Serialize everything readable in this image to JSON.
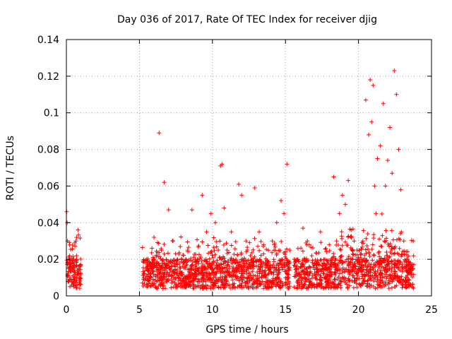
{
  "chart_data": {
    "type": "scatter",
    "title": "Day 036 of 2017, Rate Of TEC Index for receiver djig",
    "xlabel": "GPS time / hours",
    "ylabel": "ROTI / TECUs",
    "xlim": [
      0,
      25
    ],
    "ylim": [
      0,
      0.14
    ],
    "x_ticks": [
      0,
      5,
      10,
      15,
      20,
      25
    ],
    "x_tick_labels": [
      "0",
      "5",
      "10",
      "15",
      "20",
      "25"
    ],
    "y_ticks": [
      0,
      0.02,
      0.04,
      0.06,
      0.08,
      0.1,
      0.12,
      0.14
    ],
    "y_tick_labels": [
      "0",
      "0.02",
      "0.04",
      "0.06",
      "0.08",
      "0.1",
      "0.12",
      "0.14"
    ],
    "grid": true,
    "marker": "+",
    "marker_color": "#ff0000",
    "series": [
      {
        "name": "ROTI",
        "x": [
          0.02,
          0.05,
          0.08,
          0.1,
          0.14,
          0.18,
          0.2,
          0.25,
          0.3,
          0.35,
          0.4,
          0.45,
          0.5,
          0.55,
          0.6,
          0.65,
          0.7,
          0.75,
          0.8,
          0.85,
          5.3,
          5.5,
          5.8,
          6.0,
          6.2,
          6.35,
          6.5,
          6.7,
          7.0,
          7.3,
          7.6,
          8.0,
          8.3,
          8.6,
          9.0,
          9.3,
          9.6,
          9.9,
          10.2,
          10.4,
          10.55,
          10.65,
          10.8,
          11.0,
          11.3,
          11.6,
          11.8,
          12.0,
          12.3,
          12.6,
          12.9,
          13.2,
          13.5,
          13.8,
          14.1,
          14.4,
          14.7,
          14.9,
          15.1,
          15.3,
          15.6,
          15.9,
          16.2,
          16.5,
          16.8,
          17.1,
          17.4,
          17.7,
          18.0,
          18.3,
          18.5,
          18.7,
          18.9,
          19.1,
          19.3,
          19.5,
          19.7,
          19.9,
          20.1,
          20.3,
          20.5,
          20.7,
          20.8,
          20.9,
          21.0,
          21.1,
          21.2,
          21.3,
          21.5,
          21.7,
          21.85,
          22.0,
          22.15,
          22.3,
          22.45,
          22.6,
          22.75,
          22.9,
          23.1,
          23.3,
          23.5,
          23.75
        ],
        "y": [
          0.046,
          0.04,
          0.03,
          0.012,
          0.008,
          0.02,
          0.015,
          0.01,
          0.013,
          0.009,
          0.018,
          0.011,
          0.02,
          0.014,
          0.008,
          0.03,
          0.022,
          0.012,
          0.036,
          0.015,
          0.012,
          0.02,
          0.015,
          0.032,
          0.018,
          0.089,
          0.025,
          0.062,
          0.047,
          0.03,
          0.02,
          0.018,
          0.025,
          0.047,
          0.02,
          0.055,
          0.035,
          0.045,
          0.04,
          0.025,
          0.071,
          0.072,
          0.048,
          0.025,
          0.035,
          0.02,
          0.061,
          0.055,
          0.03,
          0.022,
          0.059,
          0.035,
          0.028,
          0.018,
          0.03,
          0.04,
          0.052,
          0.045,
          0.072,
          0.025,
          0.02,
          0.015,
          0.037,
          0.03,
          0.022,
          0.018,
          0.035,
          0.02,
          0.028,
          0.065,
          0.03,
          0.045,
          0.055,
          0.05,
          0.063,
          0.036,
          0.03,
          0.025,
          0.018,
          0.03,
          0.107,
          0.088,
          0.118,
          0.095,
          0.115,
          0.06,
          0.045,
          0.075,
          0.082,
          0.105,
          0.06,
          0.074,
          0.092,
          0.067,
          0.123,
          0.11,
          0.08,
          0.058,
          0.03,
          0.02,
          0.015,
          0.03
        ]
      }
    ],
    "data_gaps_hours": [
      [
        1.0,
        5.2
      ],
      [
        15.3,
        15.6
      ]
    ]
  }
}
